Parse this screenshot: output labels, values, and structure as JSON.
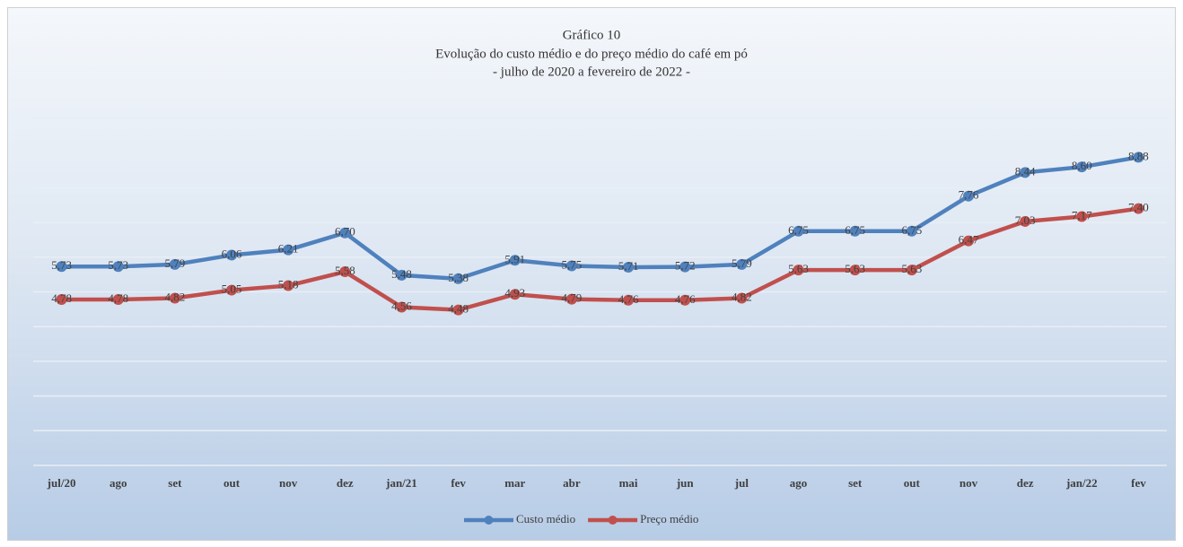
{
  "chart_data": {
    "type": "line",
    "title": "Gráfico 10",
    "subtitle": [
      "Evolução do custo médio e do preço médio do café em pó",
      "- julho de 2020 a fevereiro de 2022 -"
    ],
    "categories": [
      "jul/20",
      "ago",
      "set",
      "out",
      "nov",
      "dez",
      "jan/21",
      "fev",
      "mar",
      "abr",
      "mai",
      "jun",
      "jul",
      "ago",
      "set",
      "out",
      "nov",
      "dez",
      "jan/22",
      "fev"
    ],
    "series": [
      {
        "name": "Custo médio",
        "color": "#4f81bd",
        "values": [
          5.73,
          5.73,
          5.79,
          6.06,
          6.21,
          6.7,
          5.48,
          5.38,
          5.91,
          5.75,
          5.71,
          5.72,
          5.79,
          6.75,
          6.75,
          6.75,
          7.76,
          8.44,
          8.6,
          8.88
        ],
        "value_labels": [
          "5,73",
          "5,73",
          "5,79",
          "6,06",
          "6,21",
          "6,70",
          "5,48",
          "5,38",
          "5,91",
          "5,75",
          "5,71",
          "5,72",
          "5,79",
          "6,75",
          "6,75",
          "6,75",
          "7,76",
          "8,44",
          "8,60",
          "8,88"
        ]
      },
      {
        "name": "Preço médio",
        "color": "#c0504d",
        "values": [
          4.78,
          4.78,
          4.82,
          5.05,
          5.18,
          5.58,
          4.56,
          4.48,
          4.93,
          4.79,
          4.76,
          4.76,
          4.82,
          5.63,
          5.63,
          5.63,
          6.47,
          7.03,
          7.17,
          7.4
        ],
        "value_labels": [
          "4,78",
          "4,78",
          "4,82",
          "5,05",
          "5,18",
          "5,58",
          "4,56",
          "4,48",
          "4,93",
          "4,79",
          "4,76",
          "4,76",
          "4,82",
          "5,63",
          "5,63",
          "5,63",
          "6,47",
          "7,03",
          "7,17",
          "7,40"
        ]
      }
    ],
    "ylim": [
      0,
      10
    ],
    "yticks": [
      0,
      1,
      2,
      3,
      4,
      5,
      6,
      7,
      8,
      9,
      10
    ],
    "grid": true,
    "legend": "bottom"
  }
}
